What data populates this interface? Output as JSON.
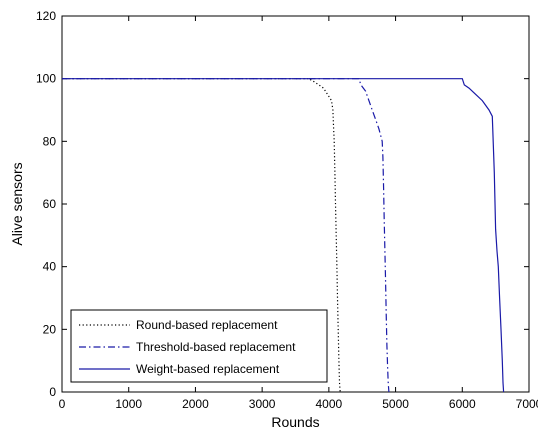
{
  "chart_data": {
    "type": "line",
    "title": "",
    "xlabel": "Rounds",
    "ylabel": "Alive sensors",
    "xlim": [
      0,
      7000
    ],
    "ylim": [
      0,
      120
    ],
    "xticks": [
      "0",
      "1000",
      "2000",
      "3000",
      "4000",
      "5000",
      "6000",
      "7000"
    ],
    "yticks": [
      "0",
      "20",
      "40",
      "60",
      "80",
      "100",
      "120"
    ],
    "grid": false,
    "legend_position": "bottom-left",
    "series": [
      {
        "name": "Round-based replacement",
        "color": "#000000",
        "style": "dotted",
        "x": [
          0,
          3700,
          3780,
          3850,
          3920,
          3980,
          4040,
          4060,
          4070,
          4080,
          4090,
          4100,
          4110,
          4120,
          4130,
          4140,
          4150,
          4160,
          4170
        ],
        "y": [
          100,
          100,
          99,
          98,
          97,
          95,
          93,
          90,
          85,
          80,
          70,
          60,
          50,
          40,
          30,
          20,
          10,
          3,
          0
        ]
      },
      {
        "name": "Threshold-based replacement",
        "color": "#1a1aa8",
        "style": "dashdot",
        "x": [
          0,
          4450,
          4480,
          4550,
          4600,
          4650,
          4700,
          4750,
          4800,
          4810,
          4820,
          4830,
          4840,
          4850,
          4860,
          4870,
          4880,
          4890,
          4900
        ],
        "y": [
          100,
          100,
          98,
          96,
          93,
          90,
          87,
          84,
          80,
          75,
          65,
          55,
          45,
          35,
          25,
          15,
          8,
          3,
          0
        ]
      },
      {
        "name": "Weight-based replacement",
        "color": "#1a1aa8",
        "style": "solid",
        "x": [
          0,
          6000,
          6030,
          6100,
          6200,
          6300,
          6400,
          6450,
          6480,
          6500,
          6520,
          6540,
          6560,
          6580,
          6600,
          6610,
          6620
        ],
        "y": [
          100,
          100,
          98,
          97,
          95,
          93,
          90,
          88,
          70,
          52,
          45,
          40,
          30,
          20,
          10,
          3,
          0
        ]
      }
    ]
  }
}
